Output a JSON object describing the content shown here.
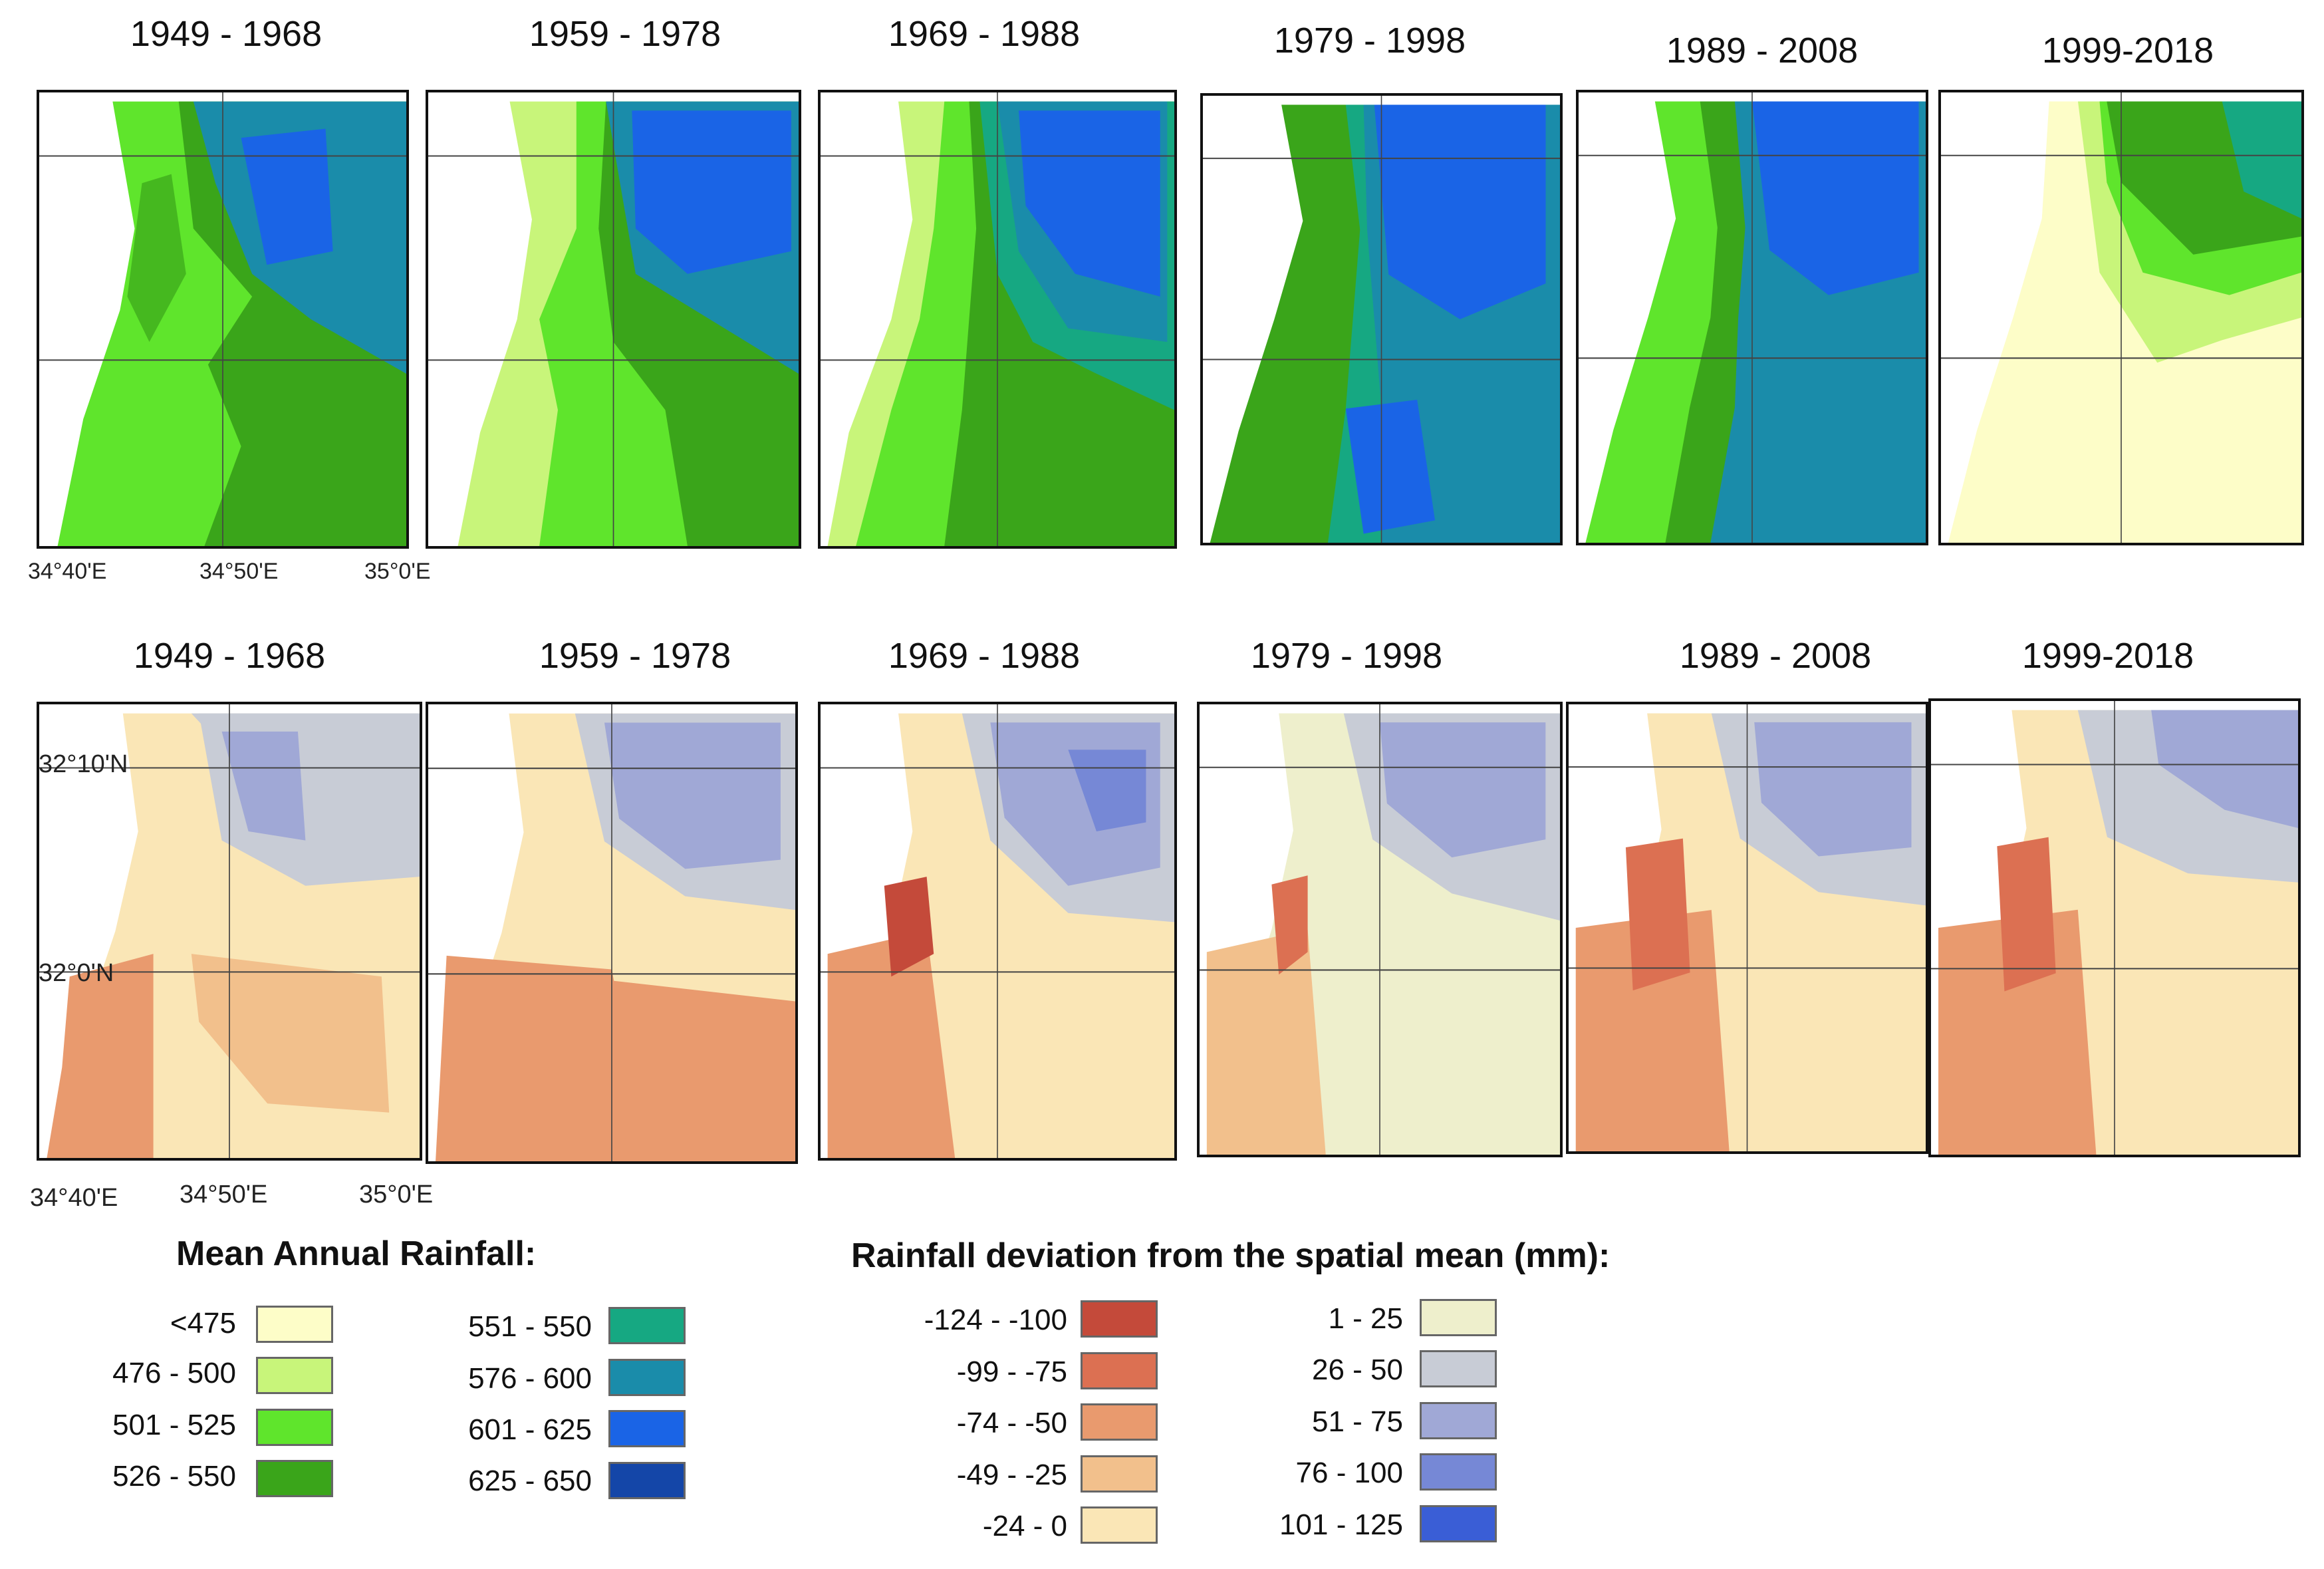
{
  "rows": [
    {
      "id": "rainfall",
      "periods": [
        "1949 - 1968",
        "1959 - 1978",
        "1969 - 1988",
        "1979 - 1998",
        "1989 - 2008",
        "1999-2018"
      ]
    },
    {
      "id": "deviation",
      "periods": [
        "1949 - 1968",
        "1959 - 1978",
        "1969 - 1988",
        "1979 - 1998",
        "1989 - 2008",
        "1999-2018"
      ]
    }
  ],
  "axis_labels": {
    "lon_top": [
      "34°40'E",
      "34°50'E",
      "35°0'E"
    ],
    "lon_bottom": [
      "34°40'E",
      "34°50'E",
      "35°0'E"
    ],
    "lat": [
      "32°10'N",
      "32°0'N"
    ]
  },
  "legend_rainfall": {
    "title": "Mean Annual Rainfall:",
    "items": [
      {
        "label": "<475",
        "color": "#fdfdc8"
      },
      {
        "label": "476 - 500",
        "color": "#c8f57a"
      },
      {
        "label": "501 - 525",
        "color": "#5fe52c"
      },
      {
        "label": "526 - 550",
        "color": "#3aa51a"
      },
      {
        "label": "551 - 550",
        "color": "#16a882"
      },
      {
        "label": "576 - 600",
        "color": "#1a8caa"
      },
      {
        "label": "601 - 625",
        "color": "#1a64e6"
      },
      {
        "label": "625 - 650",
        "color": "#1446a8"
      }
    ]
  },
  "legend_deviation": {
    "title": "Rainfall deviation from the spatial mean (mm):",
    "items": [
      {
        "label": "-124 - -100",
        "color": "#c44a3a"
      },
      {
        "label": "-99 - -75",
        "color": "#dc7052"
      },
      {
        "label": "-74 - -50",
        "color": "#e99a6e"
      },
      {
        "label": "-49 - -25",
        "color": "#f2c08c"
      },
      {
        "label": "-24 - 0",
        "color": "#fae6b6"
      },
      {
        "label": "1 - 25",
        "color": "#eeefcc"
      },
      {
        "label": "26 - 50",
        "color": "#c8ccd6"
      },
      {
        "label": "51 - 75",
        "color": "#a0a8d6"
      },
      {
        "label": "76 - 100",
        "color": "#7688d6"
      },
      {
        "label": "101 - 125",
        "color": "#3a5ed6"
      }
    ]
  }
}
